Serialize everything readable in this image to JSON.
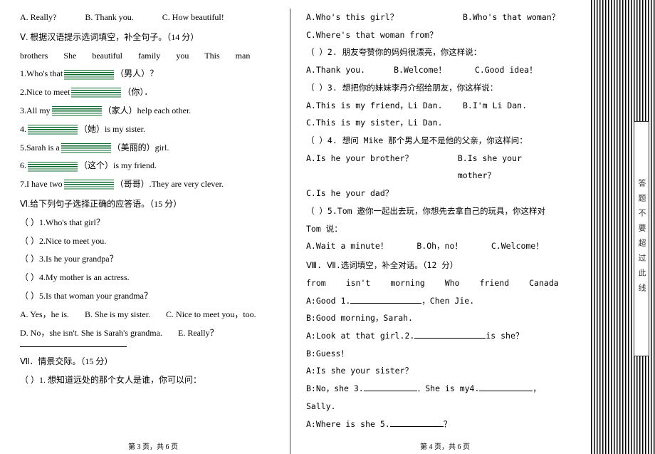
{
  "left": {
    "optA": "A. Really?",
    "optB": "B. Thank you.",
    "optC": "C. How beautiful!",
    "sec5_title": "Ⅴ. 根据汉语提示选词填空，补全句子。（14 分）",
    "bank": [
      "brothers",
      "She",
      "beautiful",
      "family",
      "you",
      "This",
      "man"
    ],
    "q1_pre": "1.Who's that",
    "q1_post": "（男人）？",
    "q2_pre": "2.Nice to meet",
    "q2_post": "（你）．",
    "q3_pre": "3.All my",
    "q3_post": "（家人）help each other.",
    "q4_pre": "4.",
    "q4_post": "（她）is my sister.",
    "q5_pre": "5.Sarah is a",
    "q5_post": "（美丽的）girl.",
    "q6_pre": "6.",
    "q6_post": "（这个）is my friend.",
    "q7_pre": "7.I have two",
    "q7_post": "（哥哥）.They are very clever.",
    "sec6_title": "Ⅵ.给下列句子选择正确的应答语。（15 分）",
    "s6_1": "（ ）1.Who's that girl？",
    "s6_2": "（ ）2.Nice to meet you.",
    "s6_3": "（ ）3.Is he your grandpa？",
    "s6_4": "（ ）4.My mother is an actress.",
    "s6_5": "（ ）5.Is that woman your grandma？",
    "s6_optA": "A. Yes，he is.",
    "s6_optB": "B. She is my sister.",
    "s6_optC": "C. Nice to meet you，too.",
    "s6_optD": "D. No，she isn't. She is Sarah's grandma.",
    "s6_optE": "E. Really？",
    "sec7_title": "Ⅶ．情景交际。（15 分）",
    "s7_1": "（ ）1. 想知道远处的那个女人是谁，你可以问："
  },
  "right": {
    "r1a": "A.Who's this girl？",
    "r1b": "B.Who's that woman？",
    "r1c": "C.Where's that woman from？",
    "r2q": "（ ）2. 朋友夸赞你的妈妈很漂亮，你这样说：",
    "r2a": "A.Thank you.",
    "r2b": "B.Welcome！",
    "r2c": "C.Good idea！",
    "r3q": "（ ）3. 想把你的妹妹李丹介绍给朋友，你这样说：",
    "r3a": "A.This is my friend，Li Dan.",
    "r3b": "B.I'm Li Dan.",
    "r3c": "C.This is my sister，Li Dan.",
    "r4q": "（ ）4. 想问 Mike 那个男人是不是他的父亲，你这样问：",
    "r4a": "A.Is he your brother？",
    "r4b": "B.Is she your mother？",
    "r4c": "C.Is he your dad？",
    "r5q": "（ ）5.Tom 邀你一起出去玩，你想先去拿自己的玩具，你这样对 Tom 说：",
    "r5a": "A.Wait a minute！",
    "r5b": "B.Oh，no！",
    "r5c": "C.Welcome！",
    "sec8_title": "Ⅷ. Ⅶ.选词填空，补全对话。（12 分）",
    "bank8": [
      "from",
      "isn't",
      "morning",
      "Who",
      "friend",
      "Canada"
    ],
    "d1_pre": "A:Good 1.",
    "d1_post": "，Chen Jie.",
    "d2": "B:Good morning，Sarah.",
    "d3_pre": "A:Look at that girl.2.",
    "d3_post": "is she？",
    "d4": "B:Guess！",
    "d5": "A:Is she your sister？",
    "d6_pre": "B:No，she 3.",
    "d6_mid": "．She is my4.",
    "d6_post": "，Sally.",
    "d7_pre": "A:Where is she 5.",
    "d7_post": "？"
  },
  "footer_left": "第 3 页，共 6 页",
  "footer_right": "第 4 页，共 6 页",
  "side_label": "答题不要超过此线"
}
